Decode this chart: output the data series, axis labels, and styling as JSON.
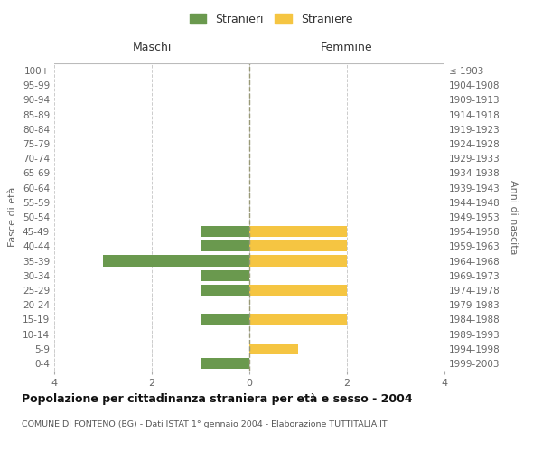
{
  "age_groups": [
    "0-4",
    "5-9",
    "10-14",
    "15-19",
    "20-24",
    "25-29",
    "30-34",
    "35-39",
    "40-44",
    "45-49",
    "50-54",
    "55-59",
    "60-64",
    "65-69",
    "70-74",
    "75-79",
    "80-84",
    "85-89",
    "90-94",
    "95-99",
    "100+"
  ],
  "birth_years": [
    "1999-2003",
    "1994-1998",
    "1989-1993",
    "1984-1988",
    "1979-1983",
    "1974-1978",
    "1969-1973",
    "1964-1968",
    "1959-1963",
    "1954-1958",
    "1949-1953",
    "1944-1948",
    "1939-1943",
    "1934-1938",
    "1929-1933",
    "1924-1928",
    "1919-1923",
    "1914-1918",
    "1909-1913",
    "1904-1908",
    "≤ 1903"
  ],
  "males": [
    -1,
    0,
    0,
    -1,
    0,
    -1,
    -1,
    -3,
    -1,
    -1,
    0,
    0,
    0,
    0,
    0,
    0,
    0,
    0,
    0,
    0,
    0
  ],
  "females": [
    0,
    1,
    0,
    2,
    0,
    2,
    0,
    2,
    2,
    2,
    0,
    0,
    0,
    0,
    0,
    0,
    0,
    0,
    0,
    0,
    0
  ],
  "color_male": "#6a994e",
  "color_female": "#f5c542",
  "xlim": [
    -4,
    4
  ],
  "xticks": [
    -4,
    -2,
    0,
    2,
    4
  ],
  "xticklabels": [
    "4",
    "2",
    "0",
    "2",
    "4"
  ],
  "title": "Popolazione per cittadinanza straniera per età e sesso - 2004",
  "subtitle": "COMUNE DI FONTENO (BG) - Dati ISTAT 1° gennaio 2004 - Elaborazione TUTTITALIA.IT",
  "ylabel_left": "Fasce di età",
  "ylabel_right": "Anni di nascita",
  "header_left": "Maschi",
  "header_right": "Femmine",
  "legend_male": "Stranieri",
  "legend_female": "Straniere",
  "bar_height": 0.75,
  "bg_color": "#ffffff",
  "grid_color": "#cccccc"
}
